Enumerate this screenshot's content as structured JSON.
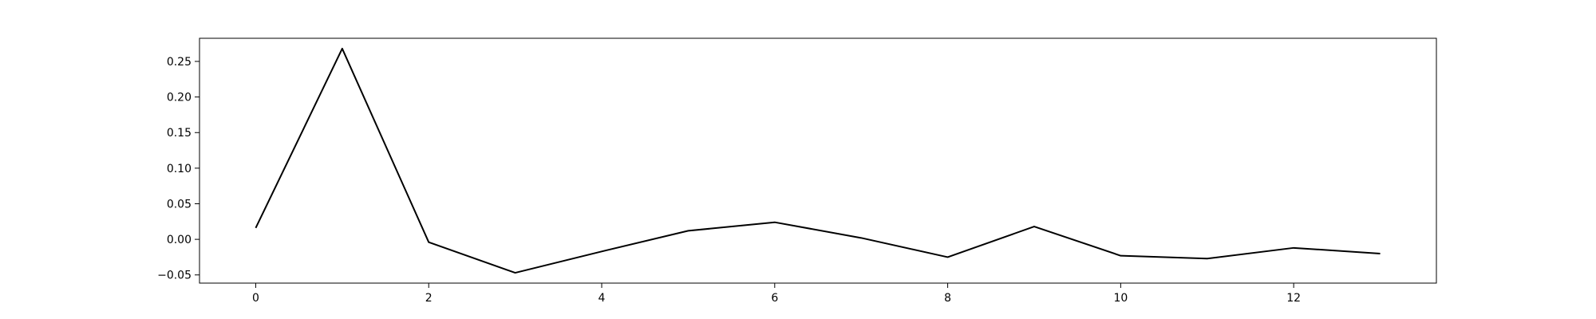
{
  "chart_data": {
    "type": "line",
    "title": "",
    "xlabel": "",
    "ylabel": "",
    "x": [
      0,
      1,
      2,
      3,
      4,
      5,
      6,
      7,
      8,
      9,
      10,
      11,
      12,
      13
    ],
    "series": [
      {
        "values": [
          0.016,
          0.268,
          -0.004,
          -0.047,
          -0.017,
          0.012,
          0.024,
          0.002,
          -0.025,
          0.018,
          -0.023,
          -0.027,
          -0.012,
          -0.02
        ],
        "color": "#000000"
      }
    ],
    "xlim": [
      -0.65,
      13.65
    ],
    "ylim": [
      -0.0615,
      0.2825
    ],
    "xticks": [
      0,
      2,
      4,
      6,
      8,
      10,
      12
    ],
    "xtick_labels": [
      "0",
      "2",
      "4",
      "6",
      "8",
      "10",
      "12"
    ],
    "yticks": [
      -0.05,
      0.0,
      0.05,
      0.1,
      0.15,
      0.2,
      0.25
    ],
    "ytick_labels": [
      "−0.05",
      "0.00",
      "0.05",
      "0.10",
      "0.15",
      "0.20",
      "0.25"
    ],
    "grid": false,
    "legend": "none"
  }
}
